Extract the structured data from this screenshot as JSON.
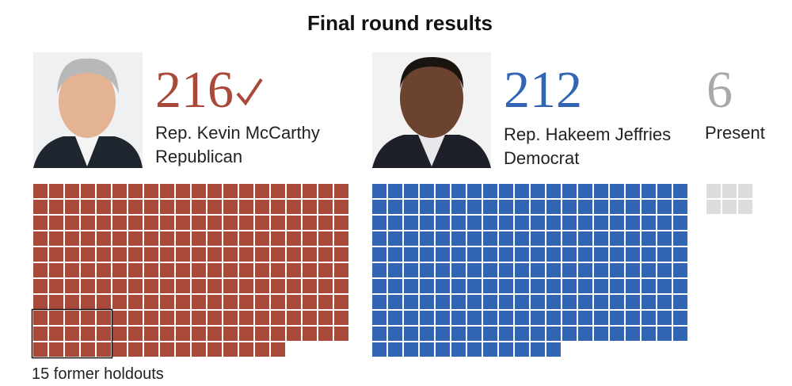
{
  "chart_data": {
    "type": "waffle",
    "title": "Final round results",
    "series": [
      {
        "name": "Rep. Kevin McCarthy",
        "party": "Republican",
        "value": 216,
        "color": "#a8493a"
      },
      {
        "name": "Rep. Hakeem Jeffries",
        "party": "Democrat",
        "value": 212,
        "color": "#3266b4"
      },
      {
        "name": "Present",
        "value": 6,
        "color": "#dcdcdc",
        "number_color": "#a9a9a9"
      }
    ],
    "annotation": {
      "label": "15 former holdouts",
      "value": 15
    }
  }
}
